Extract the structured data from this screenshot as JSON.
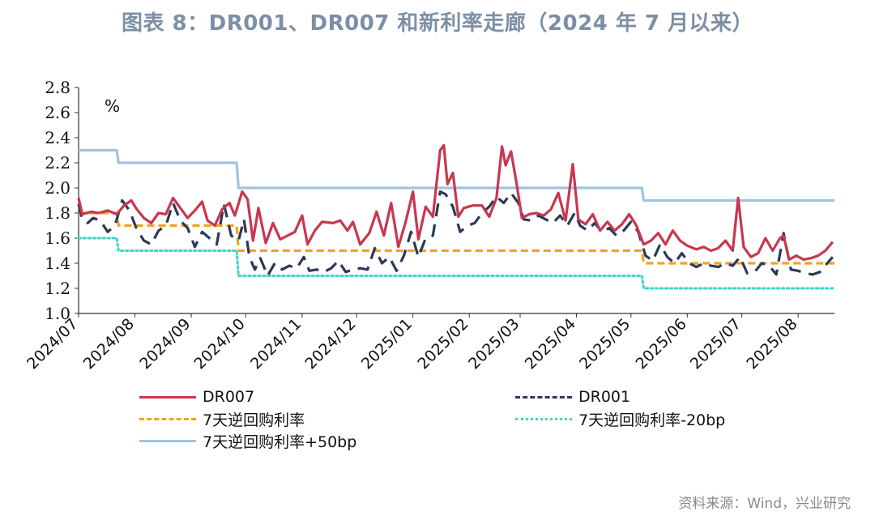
{
  "chart_data": {
    "type": "line",
    "title": "图表 8：DR001、DR007 和新利率走廊（2024 年 7 月以来）",
    "ylabel": "%",
    "ylim": [
      1.0,
      2.8
    ],
    "yticks": [
      "1.0",
      "1.2",
      "1.4",
      "1.6",
      "1.8",
      "2.0",
      "2.2",
      "2.4",
      "2.6",
      "2.8"
    ],
    "xlim": [
      "2024-07-01",
      "2025-08-21"
    ],
    "xticks": [
      "2024/07",
      "2024/08",
      "2024/09",
      "2024/10",
      "2024/11",
      "2024/12",
      "2025/01",
      "2025/02",
      "2025/03",
      "2025/04",
      "2025/05",
      "2025/06",
      "2025/07",
      "2025/08"
    ],
    "grid": false,
    "legend_position": "bottom",
    "series": [
      {
        "name": "DR007",
        "color": "#c8374f",
        "style": "solid",
        "points": [
          [
            "2024-07-01",
            1.92
          ],
          [
            "2024-07-03",
            1.79
          ],
          [
            "2024-07-08",
            1.81
          ],
          [
            "2024-07-12",
            1.8
          ],
          [
            "2024-07-17",
            1.82
          ],
          [
            "2024-07-22",
            1.79
          ],
          [
            "2024-07-26",
            1.86
          ],
          [
            "2024-07-30",
            1.9
          ],
          [
            "2024-08-02",
            1.83
          ],
          [
            "2024-08-06",
            1.76
          ],
          [
            "2024-08-10",
            1.72
          ],
          [
            "2024-08-14",
            1.8
          ],
          [
            "2024-08-18",
            1.79
          ],
          [
            "2024-08-22",
            1.92
          ],
          [
            "2024-08-26",
            1.84
          ],
          [
            "2024-08-30",
            1.76
          ],
          [
            "2024-09-03",
            1.82
          ],
          [
            "2024-09-07",
            1.89
          ],
          [
            "2024-09-10",
            1.74
          ],
          [
            "2024-09-14",
            1.7
          ],
          [
            "2024-09-18",
            1.83
          ],
          [
            "2024-09-22",
            1.88
          ],
          [
            "2024-09-25",
            1.78
          ],
          [
            "2024-09-29",
            1.97
          ],
          [
            "2024-10-02",
            1.91
          ],
          [
            "2024-10-05",
            1.58
          ],
          [
            "2024-10-08",
            1.84
          ],
          [
            "2024-10-12",
            1.56
          ],
          [
            "2024-10-16",
            1.72
          ],
          [
            "2024-10-20",
            1.59
          ],
          [
            "2024-10-24",
            1.62
          ],
          [
            "2024-10-28",
            1.65
          ],
          [
            "2024-11-01",
            1.78
          ],
          [
            "2024-11-04",
            1.55
          ],
          [
            "2024-11-08",
            1.66
          ],
          [
            "2024-11-12",
            1.73
          ],
          [
            "2024-11-18",
            1.72
          ],
          [
            "2024-11-22",
            1.74
          ],
          [
            "2024-11-26",
            1.66
          ],
          [
            "2024-11-29",
            1.73
          ],
          [
            "2024-12-03",
            1.55
          ],
          [
            "2024-12-08",
            1.64
          ],
          [
            "2024-12-12",
            1.81
          ],
          [
            "2024-12-16",
            1.62
          ],
          [
            "2024-12-20",
            1.88
          ],
          [
            "2024-12-24",
            1.53
          ],
          [
            "2024-12-28",
            1.73
          ],
          [
            "2025-01-01",
            1.97
          ],
          [
            "2025-01-04",
            1.59
          ],
          [
            "2025-01-08",
            1.85
          ],
          [
            "2025-01-12",
            1.77
          ],
          [
            "2025-01-16",
            2.3
          ],
          [
            "2025-01-18",
            2.34
          ],
          [
            "2025-01-20",
            2.03
          ],
          [
            "2025-01-23",
            2.12
          ],
          [
            "2025-01-26",
            1.77
          ],
          [
            "2025-01-29",
            1.84
          ],
          [
            "2025-02-03",
            1.86
          ],
          [
            "2025-02-08",
            1.86
          ],
          [
            "2025-02-12",
            1.77
          ],
          [
            "2025-02-16",
            1.92
          ],
          [
            "2025-02-19",
            2.33
          ],
          [
            "2025-02-21",
            2.18
          ],
          [
            "2025-02-24",
            2.29
          ],
          [
            "2025-02-27",
            2.04
          ],
          [
            "2025-03-02",
            1.76
          ],
          [
            "2025-03-06",
            1.79
          ],
          [
            "2025-03-10",
            1.8
          ],
          [
            "2025-03-14",
            1.78
          ],
          [
            "2025-03-18",
            1.83
          ],
          [
            "2025-03-22",
            1.96
          ],
          [
            "2025-03-26",
            1.74
          ],
          [
            "2025-03-30",
            2.19
          ],
          [
            "2025-04-02",
            1.75
          ],
          [
            "2025-04-06",
            1.71
          ],
          [
            "2025-04-10",
            1.79
          ],
          [
            "2025-04-14",
            1.66
          ],
          [
            "2025-04-18",
            1.73
          ],
          [
            "2025-04-22",
            1.66
          ],
          [
            "2025-04-26",
            1.71
          ],
          [
            "2025-04-30",
            1.79
          ],
          [
            "2025-05-04",
            1.7
          ],
          [
            "2025-05-08",
            1.55
          ],
          [
            "2025-05-12",
            1.58
          ],
          [
            "2025-05-16",
            1.64
          ],
          [
            "2025-05-20",
            1.55
          ],
          [
            "2025-05-24",
            1.66
          ],
          [
            "2025-05-28",
            1.58
          ],
          [
            "2025-06-01",
            1.54
          ],
          [
            "2025-06-06",
            1.51
          ],
          [
            "2025-06-10",
            1.53
          ],
          [
            "2025-06-14",
            1.5
          ],
          [
            "2025-06-18",
            1.52
          ],
          [
            "2025-06-22",
            1.58
          ],
          [
            "2025-06-26",
            1.5
          ],
          [
            "2025-06-29",
            1.92
          ],
          [
            "2025-07-02",
            1.53
          ],
          [
            "2025-07-06",
            1.45
          ],
          [
            "2025-07-10",
            1.48
          ],
          [
            "2025-07-14",
            1.6
          ],
          [
            "2025-07-18",
            1.5
          ],
          [
            "2025-07-22",
            1.6
          ],
          [
            "2025-07-24",
            1.62
          ],
          [
            "2025-07-27",
            1.43
          ],
          [
            "2025-07-31",
            1.46
          ],
          [
            "2025-08-04",
            1.43
          ],
          [
            "2025-08-08",
            1.44
          ],
          [
            "2025-08-12",
            1.46
          ],
          [
            "2025-08-16",
            1.5
          ],
          [
            "2025-08-20",
            1.57
          ]
        ]
      },
      {
        "name": "DR001",
        "color": "#2c3a57",
        "style": "dashed",
        "points": [
          [
            "2024-07-01",
            1.87
          ],
          [
            "2024-07-03",
            1.75
          ],
          [
            "2024-07-06",
            1.72
          ],
          [
            "2024-07-09",
            1.76
          ],
          [
            "2024-07-13",
            1.74
          ],
          [
            "2024-07-17",
            1.65
          ],
          [
            "2024-07-21",
            1.7
          ],
          [
            "2024-07-25",
            1.9
          ],
          [
            "2024-07-29",
            1.82
          ],
          [
            "2024-08-02",
            1.67
          ],
          [
            "2024-08-06",
            1.58
          ],
          [
            "2024-08-10",
            1.55
          ],
          [
            "2024-08-14",
            1.66
          ],
          [
            "2024-08-18",
            1.7
          ],
          [
            "2024-08-22",
            1.88
          ],
          [
            "2024-08-26",
            1.74
          ],
          [
            "2024-08-30",
            1.68
          ],
          [
            "2024-09-03",
            1.53
          ],
          [
            "2024-09-07",
            1.65
          ],
          [
            "2024-09-11",
            1.6
          ],
          [
            "2024-09-15",
            1.55
          ],
          [
            "2024-09-19",
            1.87
          ],
          [
            "2024-09-23",
            1.62
          ],
          [
            "2024-09-27",
            1.58
          ],
          [
            "2024-09-30",
            1.75
          ],
          [
            "2024-10-03",
            1.45
          ],
          [
            "2024-10-06",
            1.35
          ],
          [
            "2024-10-09",
            1.44
          ],
          [
            "2024-10-13",
            1.3
          ],
          [
            "2024-10-17",
            1.4
          ],
          [
            "2024-10-21",
            1.35
          ],
          [
            "2024-10-25",
            1.38
          ],
          [
            "2024-10-29",
            1.36
          ],
          [
            "2024-11-02",
            1.45
          ],
          [
            "2024-11-05",
            1.34
          ],
          [
            "2024-11-09",
            1.35
          ],
          [
            "2024-11-13",
            1.33
          ],
          [
            "2024-11-17",
            1.36
          ],
          [
            "2024-11-21",
            1.42
          ],
          [
            "2024-11-25",
            1.33
          ],
          [
            "2024-11-29",
            1.35
          ],
          [
            "2024-12-03",
            1.36
          ],
          [
            "2024-12-07",
            1.35
          ],
          [
            "2024-12-11",
            1.52
          ],
          [
            "2024-12-15",
            1.4
          ],
          [
            "2024-12-19",
            1.45
          ],
          [
            "2024-12-23",
            1.34
          ],
          [
            "2024-12-27",
            1.46
          ],
          [
            "2024-12-31",
            1.65
          ],
          [
            "2025-01-04",
            1.45
          ],
          [
            "2025-01-08",
            1.6
          ],
          [
            "2025-01-12",
            1.62
          ],
          [
            "2025-01-16",
            1.97
          ],
          [
            "2025-01-19",
            1.95
          ],
          [
            "2025-01-23",
            1.85
          ],
          [
            "2025-01-27",
            1.65
          ],
          [
            "2025-01-31",
            1.7
          ],
          [
            "2025-02-04",
            1.72
          ],
          [
            "2025-02-08",
            1.8
          ],
          [
            "2025-02-12",
            1.85
          ],
          [
            "2025-02-16",
            1.93
          ],
          [
            "2025-02-20",
            1.88
          ],
          [
            "2025-02-24",
            1.96
          ],
          [
            "2025-02-28",
            1.88
          ],
          [
            "2025-03-03",
            1.75
          ],
          [
            "2025-03-07",
            1.74
          ],
          [
            "2025-03-11",
            1.78
          ],
          [
            "2025-03-15",
            1.75
          ],
          [
            "2025-03-19",
            1.72
          ],
          [
            "2025-03-23",
            1.78
          ],
          [
            "2025-03-27",
            1.7
          ],
          [
            "2025-03-31",
            1.8
          ],
          [
            "2025-04-03",
            1.7
          ],
          [
            "2025-04-07",
            1.66
          ],
          [
            "2025-04-11",
            1.72
          ],
          [
            "2025-04-15",
            1.65
          ],
          [
            "2025-04-19",
            1.68
          ],
          [
            "2025-04-23",
            1.62
          ],
          [
            "2025-04-27",
            1.66
          ],
          [
            "2025-05-01",
            1.73
          ],
          [
            "2025-05-05",
            1.65
          ],
          [
            "2025-05-09",
            1.46
          ],
          [
            "2025-05-13",
            1.42
          ],
          [
            "2025-05-17",
            1.55
          ],
          [
            "2025-05-21",
            1.45
          ],
          [
            "2025-05-25",
            1.4
          ],
          [
            "2025-05-29",
            1.48
          ],
          [
            "2025-06-02",
            1.4
          ],
          [
            "2025-06-06",
            1.37
          ],
          [
            "2025-06-10",
            1.4
          ],
          [
            "2025-06-14",
            1.38
          ],
          [
            "2025-06-18",
            1.37
          ],
          [
            "2025-06-22",
            1.4
          ],
          [
            "2025-06-26",
            1.38
          ],
          [
            "2025-06-30",
            1.45
          ],
          [
            "2025-07-04",
            1.32
          ],
          [
            "2025-07-08",
            1.33
          ],
          [
            "2025-07-12",
            1.4
          ],
          [
            "2025-07-16",
            1.38
          ],
          [
            "2025-07-20",
            1.31
          ],
          [
            "2025-07-24",
            1.64
          ],
          [
            "2025-07-28",
            1.35
          ],
          [
            "2025-08-01",
            1.34
          ],
          [
            "2025-08-05",
            1.32
          ],
          [
            "2025-08-09",
            1.31
          ],
          [
            "2025-08-13",
            1.33
          ],
          [
            "2025-08-17",
            1.4
          ],
          [
            "2025-08-20",
            1.45
          ]
        ]
      },
      {
        "name": "7天逆回购利率",
        "color": "#f2a321",
        "style": "dashed",
        "points": [
          [
            "2024-07-01",
            1.8
          ],
          [
            "2024-07-22",
            1.8
          ],
          [
            "2024-07-23",
            1.7
          ],
          [
            "2024-09-26",
            1.7
          ],
          [
            "2024-09-27",
            1.5
          ],
          [
            "2025-05-07",
            1.5
          ],
          [
            "2025-05-08",
            1.4
          ],
          [
            "2025-08-21",
            1.4
          ]
        ]
      },
      {
        "name": "7天逆回购利率-20bp",
        "color": "#3fd6c9",
        "style": "dotted",
        "points": [
          [
            "2024-07-01",
            1.6
          ],
          [
            "2024-07-22",
            1.6
          ],
          [
            "2024-07-23",
            1.5
          ],
          [
            "2024-09-26",
            1.5
          ],
          [
            "2024-09-27",
            1.3
          ],
          [
            "2025-05-07",
            1.3
          ],
          [
            "2025-05-08",
            1.2
          ],
          [
            "2025-08-21",
            1.2
          ]
        ]
      },
      {
        "name": "7天逆回购利率+50bp",
        "color": "#9fc3e3",
        "style": "solid",
        "points": [
          [
            "2024-07-01",
            2.3
          ],
          [
            "2024-07-22",
            2.3
          ],
          [
            "2024-07-23",
            2.2
          ],
          [
            "2024-09-26",
            2.2
          ],
          [
            "2024-09-27",
            2.0
          ],
          [
            "2025-05-07",
            2.0
          ],
          [
            "2025-05-08",
            1.9
          ],
          [
            "2025-08-21",
            1.9
          ]
        ]
      }
    ]
  },
  "source": "资料来源：Wind，兴业研究"
}
